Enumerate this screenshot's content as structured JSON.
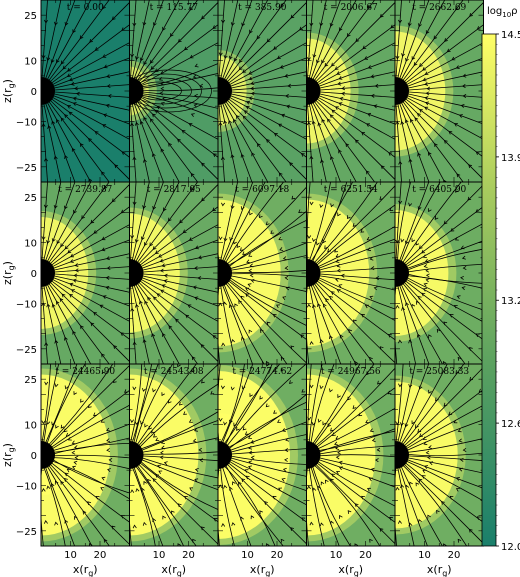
{
  "chart_data": {
    "type": "heatmap",
    "layout": {
      "rows": 3,
      "cols": 5
    },
    "panels": [
      {
        "time_label": "t = 0.00",
        "t": 0.0,
        "disk_extent": 0.0,
        "density_level": 0.0,
        "field_state": "initial"
      },
      {
        "time_label": "t = 115.77",
        "t": 115.77,
        "disk_extent": 0.15,
        "density_level": 0.05,
        "field_state": "loops"
      },
      {
        "time_label": "t = 385.90",
        "t": 385.9,
        "disk_extent": 0.3,
        "density_level": 0.3,
        "field_state": "radial"
      },
      {
        "time_label": "t = 2006.67",
        "t": 2006.67,
        "disk_extent": 0.55,
        "density_level": 0.55,
        "field_state": "radial"
      },
      {
        "time_label": "t = 2662.69",
        "t": 2662.69,
        "disk_extent": 0.65,
        "density_level": 0.6,
        "field_state": "radial"
      },
      {
        "time_label": "t = 2739.87",
        "t": 2739.87,
        "disk_extent": 0.6,
        "density_level": 0.6,
        "field_state": "radial"
      },
      {
        "time_label": "t = 2817.05",
        "t": 2817.05,
        "disk_extent": 0.65,
        "density_level": 0.65,
        "field_state": "radial"
      },
      {
        "time_label": "t = 6097.18",
        "t": 6097.18,
        "disk_extent": 0.85,
        "density_level": 0.8,
        "field_state": "turbulent"
      },
      {
        "time_label": "t = 6251.54",
        "t": 6251.54,
        "disk_extent": 0.85,
        "density_level": 0.8,
        "field_state": "turbulent"
      },
      {
        "time_label": "t = 6405.90",
        "t": 6405.9,
        "disk_extent": 0.7,
        "density_level": 0.75,
        "field_state": "turbulent"
      },
      {
        "time_label": "t = 24465.90",
        "t": 24465.9,
        "disk_extent": 0.95,
        "density_level": 0.85,
        "field_state": "turbulent"
      },
      {
        "time_label": "t = 24543.08",
        "t": 24543.08,
        "disk_extent": 0.95,
        "density_level": 0.85,
        "field_state": "turbulent"
      },
      {
        "time_label": "t = 24774.62",
        "t": 24774.62,
        "disk_extent": 1.0,
        "density_level": 0.9,
        "field_state": "turbulent"
      },
      {
        "time_label": "t = 24967.56",
        "t": 24967.56,
        "disk_extent": 0.95,
        "density_level": 0.85,
        "field_state": "turbulent"
      },
      {
        "time_label": "t = 25083.33",
        "t": 25083.33,
        "disk_extent": 0.85,
        "density_level": 0.8,
        "field_state": "turbulent"
      }
    ],
    "x_axis": {
      "label": "x(r_g)",
      "ticks": [
        "10",
        "20"
      ],
      "tick_values": [
        10,
        20
      ],
      "range": [
        0,
        30
      ]
    },
    "y_axis": {
      "label": "z(r_g)",
      "ticks": [
        "25",
        "10",
        "0",
        "−10",
        "−25"
      ],
      "tick_values": [
        25,
        10,
        0,
        -10,
        -25
      ],
      "range": [
        -30,
        30
      ]
    },
    "colorbar": {
      "label": "log10ρ",
      "ticks": [
        "14.5",
        "13.9",
        "13.2",
        "12.6",
        "12.0"
      ],
      "tick_values": [
        14.5,
        13.9,
        13.2,
        12.6,
        12.0
      ],
      "range": [
        12.0,
        14.5
      ]
    },
    "colors": {
      "low": "#1a7f6b",
      "mid": "#6fae62",
      "high": "#ffff66",
      "hole": "#000000"
    }
  }
}
